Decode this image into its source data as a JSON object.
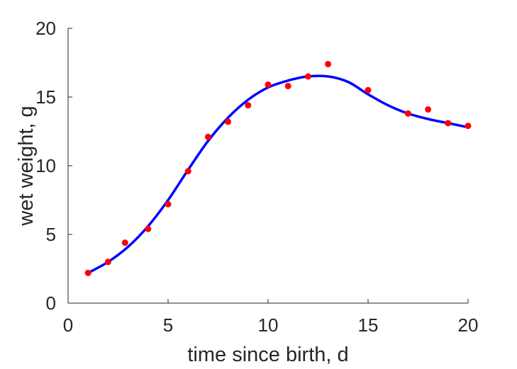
{
  "chart_data": {
    "type": "scatter",
    "title": "",
    "xlabel": "time since birth, d",
    "ylabel": "wet weight, g",
    "xlim": [
      0,
      20
    ],
    "ylim": [
      0,
      20
    ],
    "xticks": [
      "0",
      "5",
      "10",
      "15",
      "20"
    ],
    "yticks": [
      "0",
      "5",
      "10",
      "15",
      "20"
    ],
    "grid": false,
    "series": [
      {
        "kind": "points",
        "color": "#ff0000",
        "x": [
          1,
          2,
          2.85,
          4,
          5,
          6,
          7,
          8,
          9,
          10,
          11,
          12,
          13,
          15,
          17,
          18,
          19,
          20
        ],
        "y": [
          2.2,
          3.0,
          4.4,
          5.4,
          7.2,
          9.6,
          12.1,
          13.2,
          14.4,
          15.9,
          15.8,
          16.5,
          17.4,
          15.5,
          13.8,
          14.1,
          13.1,
          12.9
        ]
      },
      {
        "kind": "line",
        "color": "#0000ff",
        "x": [
          1,
          2,
          3,
          4,
          5,
          6,
          7,
          8,
          9,
          10,
          11,
          12,
          13,
          14,
          15,
          16,
          17,
          18,
          19,
          20
        ],
        "y": [
          2.2,
          3.0,
          4.1,
          5.6,
          7.5,
          9.7,
          11.8,
          13.5,
          14.8,
          15.7,
          16.2,
          16.5,
          16.5,
          16.1,
          15.2,
          14.4,
          13.8,
          13.4,
          13.1,
          12.8
        ]
      }
    ]
  }
}
